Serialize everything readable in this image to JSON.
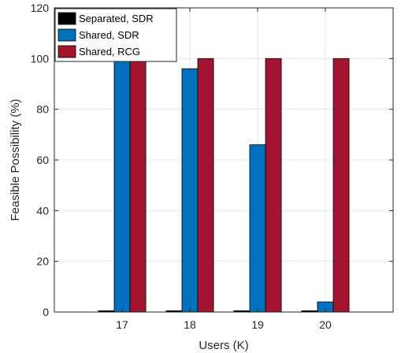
{
  "chart_data": {
    "type": "bar",
    "title": "",
    "xlabel": "Users (K)",
    "ylabel": "Feasible Possibility (%)",
    "categories": [
      "17",
      "18",
      "19",
      "20"
    ],
    "ylim": [
      0,
      120
    ],
    "yticks": [
      "0",
      "20",
      "40",
      "60",
      "80",
      "100",
      "120"
    ],
    "xlim": [
      16,
      21
    ],
    "grid": true,
    "legend_position": "top-left",
    "series": [
      {
        "name": "Separated, SDR",
        "color": "#000000",
        "values": [
          0.5,
          0.5,
          0.5,
          0.5
        ]
      },
      {
        "name": "Shared, SDR",
        "color": "#0072BD",
        "values": [
          100,
          96,
          66,
          4
        ]
      },
      {
        "name": "Shared, RCG",
        "color": "#A2142F",
        "values": [
          100,
          100,
          100,
          100
        ]
      }
    ]
  }
}
